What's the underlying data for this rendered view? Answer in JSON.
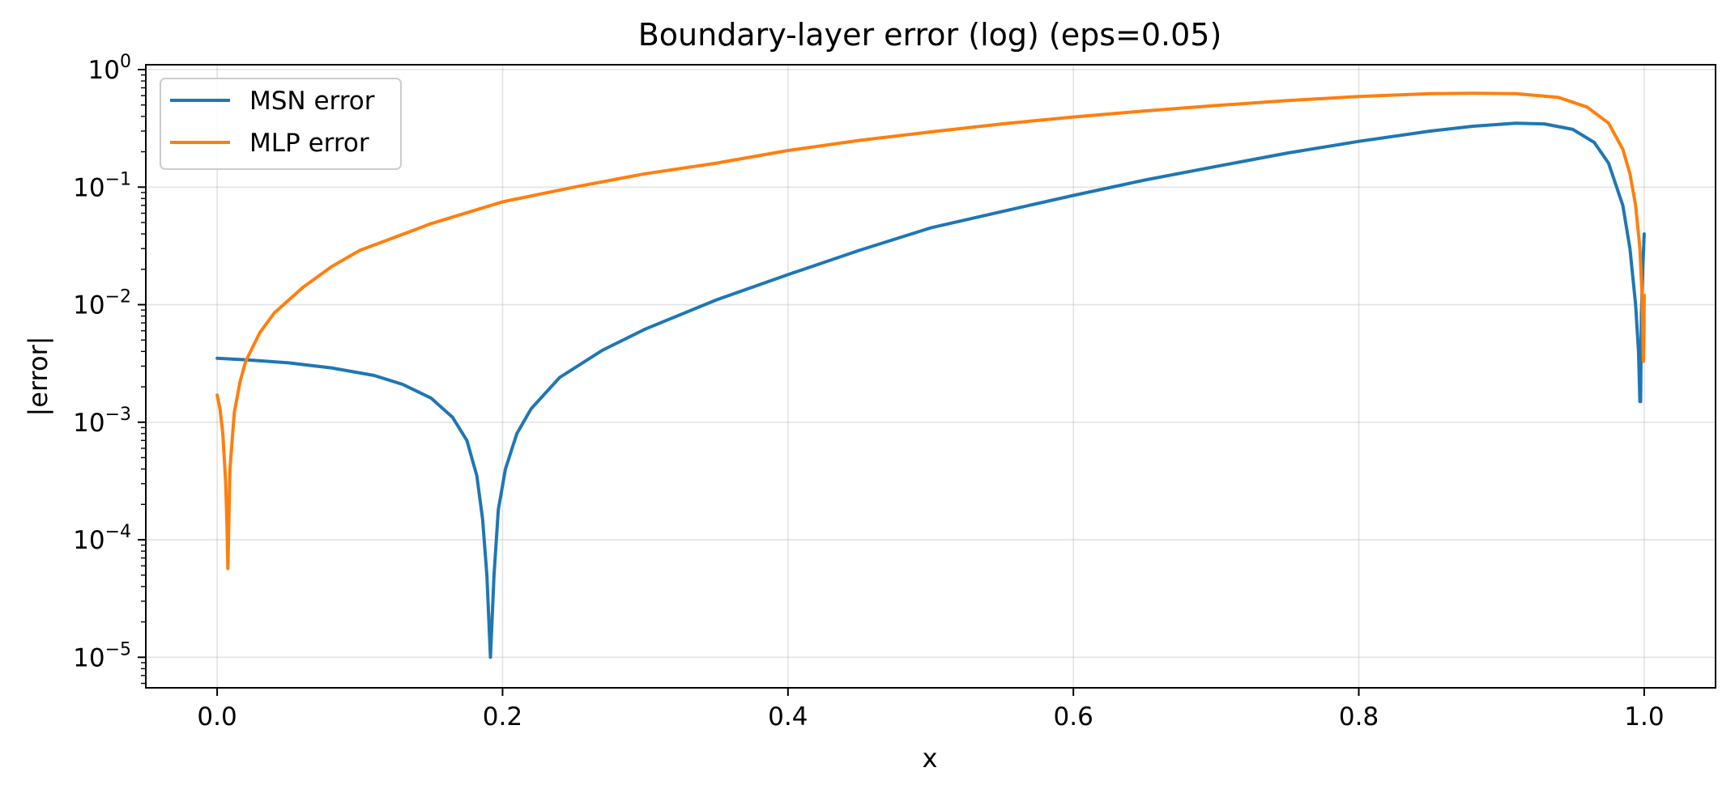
{
  "chart_data": {
    "type": "line",
    "title": "Boundary-layer error (log) (eps=0.05)",
    "xlabel": "x",
    "ylabel": "|error|",
    "xlim": [
      -0.05,
      1.05
    ],
    "ylim": [
      5.5e-06,
      1.1
    ],
    "yscale": "log",
    "grid": true,
    "legend_position": "top-left",
    "x_ticks": [
      "0.0",
      "0.2",
      "0.4",
      "0.6",
      "0.8",
      "1.0"
    ],
    "y_ticks": [
      {
        "base": "10",
        "exp": "−5"
      },
      {
        "base": "10",
        "exp": "−4"
      },
      {
        "base": "10",
        "exp": "−3"
      },
      {
        "base": "10",
        "exp": "−2"
      },
      {
        "base": "10",
        "exp": "−1"
      },
      {
        "base": "10",
        "exp": "0"
      }
    ],
    "series": [
      {
        "name": "MSN error",
        "color": "#1f77b4",
        "points": [
          [
            0.0,
            0.0035
          ],
          [
            0.02,
            0.0034
          ],
          [
            0.05,
            0.0032
          ],
          [
            0.08,
            0.0029
          ],
          [
            0.11,
            0.0025
          ],
          [
            0.13,
            0.0021
          ],
          [
            0.15,
            0.0016
          ],
          [
            0.165,
            0.0011
          ],
          [
            0.175,
            0.0007
          ],
          [
            0.182,
            0.00035
          ],
          [
            0.186,
            0.00015
          ],
          [
            0.189,
            5e-05
          ],
          [
            0.1915,
            1e-05
          ],
          [
            0.194,
            5e-05
          ],
          [
            0.197,
            0.00018
          ],
          [
            0.202,
            0.0004
          ],
          [
            0.21,
            0.0008
          ],
          [
            0.22,
            0.0013
          ],
          [
            0.24,
            0.0024
          ],
          [
            0.27,
            0.0041
          ],
          [
            0.3,
            0.0062
          ],
          [
            0.35,
            0.011
          ],
          [
            0.4,
            0.018
          ],
          [
            0.45,
            0.029
          ],
          [
            0.5,
            0.045
          ],
          [
            0.55,
            0.062
          ],
          [
            0.6,
            0.085
          ],
          [
            0.65,
            0.115
          ],
          [
            0.7,
            0.15
          ],
          [
            0.75,
            0.195
          ],
          [
            0.8,
            0.245
          ],
          [
            0.85,
            0.3
          ],
          [
            0.88,
            0.33
          ],
          [
            0.91,
            0.35
          ],
          [
            0.93,
            0.345
          ],
          [
            0.95,
            0.31
          ],
          [
            0.965,
            0.24
          ],
          [
            0.975,
            0.16
          ],
          [
            0.985,
            0.07
          ],
          [
            0.99,
            0.03
          ],
          [
            0.994,
            0.01
          ],
          [
            0.996,
            0.004
          ],
          [
            0.997,
            0.0015
          ],
          [
            0.9975,
            0.0015
          ],
          [
            0.998,
            0.008
          ],
          [
            0.999,
            0.02
          ],
          [
            1.0,
            0.04
          ]
        ]
      },
      {
        "name": "MLP error",
        "color": "#ff7f0e",
        "points": [
          [
            0.0,
            0.0017
          ],
          [
            0.002,
            0.0013
          ],
          [
            0.004,
            0.0008
          ],
          [
            0.006,
            0.0003
          ],
          [
            0.007,
            0.00012
          ],
          [
            0.0075,
            5.7e-05
          ],
          [
            0.009,
            0.0004
          ],
          [
            0.012,
            0.0012
          ],
          [
            0.016,
            0.0022
          ],
          [
            0.02,
            0.0033
          ],
          [
            0.03,
            0.0058
          ],
          [
            0.04,
            0.0085
          ],
          [
            0.06,
            0.014
          ],
          [
            0.08,
            0.021
          ],
          [
            0.1,
            0.029
          ],
          [
            0.15,
            0.049
          ],
          [
            0.2,
            0.075
          ],
          [
            0.25,
            0.1
          ],
          [
            0.3,
            0.13
          ],
          [
            0.35,
            0.16
          ],
          [
            0.4,
            0.205
          ],
          [
            0.45,
            0.25
          ],
          [
            0.5,
            0.295
          ],
          [
            0.55,
            0.345
          ],
          [
            0.6,
            0.395
          ],
          [
            0.65,
            0.445
          ],
          [
            0.7,
            0.495
          ],
          [
            0.75,
            0.545
          ],
          [
            0.8,
            0.59
          ],
          [
            0.85,
            0.625
          ],
          [
            0.88,
            0.63
          ],
          [
            0.91,
            0.625
          ],
          [
            0.94,
            0.58
          ],
          [
            0.96,
            0.48
          ],
          [
            0.975,
            0.35
          ],
          [
            0.985,
            0.21
          ],
          [
            0.99,
            0.13
          ],
          [
            0.994,
            0.07
          ],
          [
            0.997,
            0.03
          ],
          [
            0.9985,
            0.012
          ],
          [
            0.9993,
            0.004
          ],
          [
            0.9995,
            0.0033
          ],
          [
            0.9998,
            0.006
          ],
          [
            1.0,
            0.012
          ]
        ]
      }
    ]
  }
}
